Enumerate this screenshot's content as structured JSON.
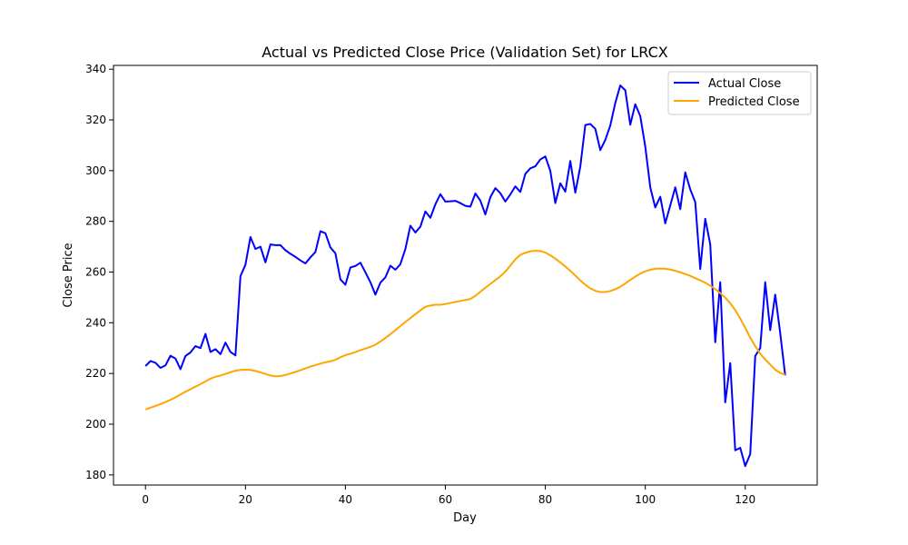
{
  "chart_data": {
    "type": "line",
    "title": "Actual vs Predicted Close Price (Validation Set) for LRCX",
    "xlabel": "Day",
    "ylabel": "Close Price",
    "xlim": [
      -6.4,
      134.4
    ],
    "ylim": [
      176.0,
      341.5
    ],
    "xticks": [
      0,
      20,
      40,
      60,
      80,
      100,
      120
    ],
    "yticks": [
      180,
      200,
      220,
      240,
      260,
      280,
      300,
      320,
      340
    ],
    "grid": false,
    "legend_position": "top-right",
    "x": [
      0,
      1,
      2,
      3,
      4,
      5,
      6,
      7,
      8,
      9,
      10,
      11,
      12,
      13,
      14,
      15,
      16,
      17,
      18,
      19,
      20,
      21,
      22,
      23,
      24,
      25,
      26,
      27,
      28,
      29,
      30,
      31,
      32,
      33,
      34,
      35,
      36,
      37,
      38,
      39,
      40,
      41,
      42,
      43,
      44,
      45,
      46,
      47,
      48,
      49,
      50,
      51,
      52,
      53,
      54,
      55,
      56,
      57,
      58,
      59,
      60,
      61,
      62,
      63,
      64,
      65,
      66,
      67,
      68,
      69,
      70,
      71,
      72,
      73,
      74,
      75,
      76,
      77,
      78,
      79,
      80,
      81,
      82,
      83,
      84,
      85,
      86,
      87,
      88,
      89,
      90,
      91,
      92,
      93,
      94,
      95,
      96,
      97,
      98,
      99,
      100,
      101,
      102,
      103,
      104,
      105,
      106,
      107,
      108,
      109,
      110,
      111,
      112,
      113,
      114,
      115,
      116,
      117,
      118,
      119,
      120,
      121,
      122,
      123,
      124,
      125,
      126,
      127,
      128
    ],
    "series": [
      {
        "name": "Actual Close",
        "color": "#0000ff",
        "values": [
          222.9,
          224.9,
          224.2,
          222.2,
          223.2,
          227.0,
          225.9,
          221.7,
          226.9,
          228.3,
          230.8,
          230.0,
          235.6,
          228.5,
          229.6,
          227.6,
          232.2,
          228.5,
          227.1,
          258.4,
          262.9,
          273.8,
          269.1,
          270.0,
          263.8,
          270.9,
          270.6,
          270.6,
          268.6,
          267.2,
          266.0,
          264.6,
          263.4,
          265.8,
          267.9,
          276.1,
          275.3,
          269.7,
          267.4,
          257.1,
          255.0,
          261.8,
          262.4,
          263.7,
          259.9,
          256.0,
          251.1,
          255.8,
          257.9,
          262.5,
          260.9,
          263.1,
          269.1,
          278.3,
          275.6,
          277.9,
          283.9,
          281.4,
          286.7,
          290.7,
          287.8,
          287.9,
          288.1,
          287.2,
          286.1,
          285.8,
          291.0,
          288.2,
          282.7,
          289.5,
          293.1,
          291.1,
          287.8,
          290.6,
          293.8,
          291.6,
          298.7,
          300.9,
          301.7,
          304.4,
          305.6,
          299.9,
          287.2,
          295.0,
          291.7,
          303.8,
          291.3,
          301.6,
          318.0,
          318.4,
          316.5,
          308.1,
          312.1,
          317.8,
          326.7,
          333.6,
          331.7,
          318.1,
          326.2,
          321.5,
          309.5,
          293.4,
          285.5,
          289.7,
          279.2,
          286.3,
          293.4,
          284.8,
          299.3,
          292.6,
          287.6,
          261.2,
          281.0,
          270.9,
          232.3,
          256.0,
          208.6,
          224.1,
          189.7,
          190.7,
          183.5,
          188.2,
          226.9,
          230.0,
          256.0,
          237.1,
          251.1,
          235.9,
          219.2
        ]
      },
      {
        "name": "Predicted Close",
        "color": "#ffa500",
        "values": [
          205.8,
          206.5,
          207.2,
          207.9,
          208.7,
          209.6,
          210.6,
          211.7,
          212.8,
          213.8,
          214.8,
          215.8,
          216.9,
          218.0,
          218.7,
          219.2,
          219.8,
          220.5,
          221.1,
          221.4,
          221.5,
          221.4,
          221.0,
          220.4,
          219.8,
          219.2,
          218.9,
          219.0,
          219.4,
          220.0,
          220.6,
          221.3,
          222.0,
          222.7,
          223.3,
          223.9,
          224.4,
          224.8,
          225.4,
          226.4,
          227.2,
          227.8,
          228.4,
          229.2,
          229.8,
          230.5,
          231.3,
          232.6,
          234.0,
          235.5,
          237.1,
          238.7,
          240.3,
          241.8,
          243.4,
          244.9,
          246.3,
          246.8,
          247.1,
          247.1,
          247.4,
          247.8,
          248.2,
          248.6,
          249.0,
          249.4,
          250.6,
          252.2,
          253.8,
          255.3,
          256.8,
          258.3,
          260.2,
          262.5,
          265.0,
          266.8,
          267.6,
          268.2,
          268.4,
          268.3,
          267.7,
          266.6,
          265.3,
          263.8,
          262.2,
          260.5,
          258.6,
          256.7,
          255.0,
          253.6,
          252.6,
          252.1,
          252.1,
          252.5,
          253.2,
          254.2,
          255.5,
          256.9,
          258.2,
          259.4,
          260.3,
          260.9,
          261.3,
          261.4,
          261.3,
          261.0,
          260.5,
          259.9,
          259.2,
          258.5,
          257.6,
          256.7,
          255.8,
          254.6,
          253.3,
          251.7,
          249.9,
          247.7,
          245.0,
          241.7,
          238.0,
          234.1,
          230.8,
          227.8,
          225.5,
          223.5,
          221.5,
          220.2,
          219.5
        ]
      }
    ]
  }
}
